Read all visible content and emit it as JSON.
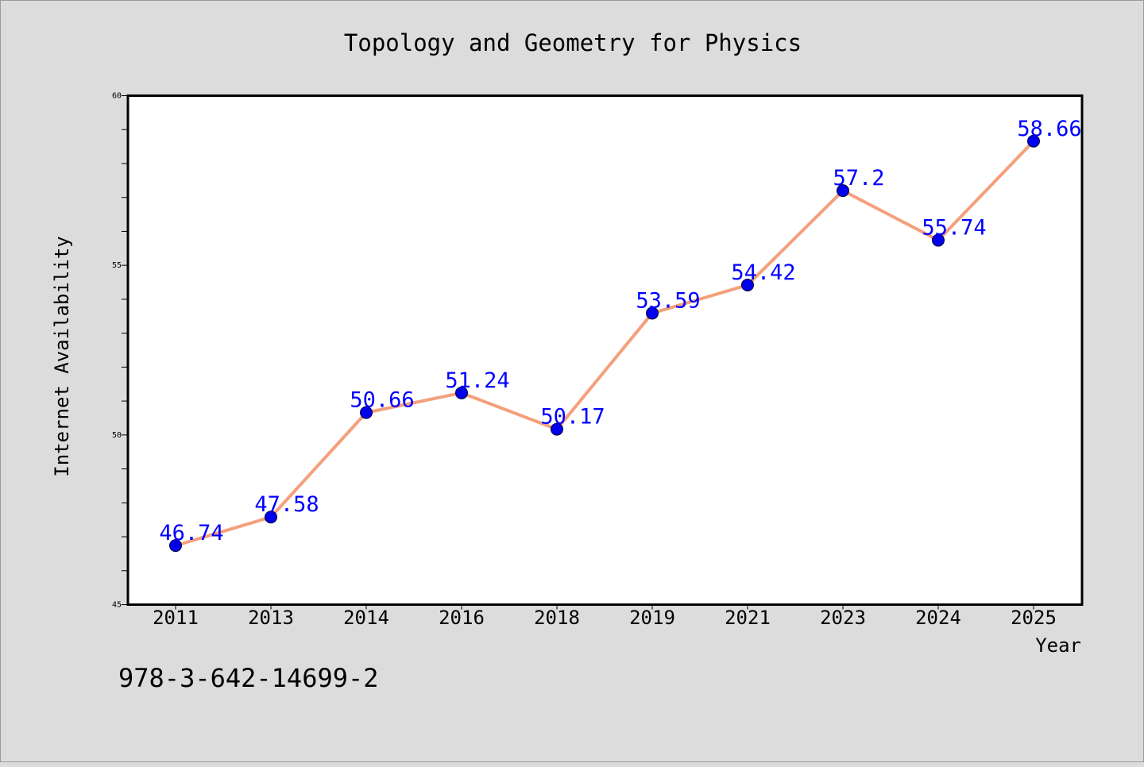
{
  "chart_data": {
    "type": "line",
    "title": "Topology and Geometry for Physics",
    "xlabel": "Year",
    "ylabel": "Internet Availability",
    "categories": [
      "2011",
      "2013",
      "2014",
      "2016",
      "2018",
      "2019",
      "2021",
      "2023",
      "2024",
      "2025"
    ],
    "series": [
      {
        "values": [
          46.74,
          47.58,
          50.66,
          51.24,
          50.17,
          53.59,
          54.42,
          57.2,
          55.74,
          58.66
        ],
        "labels": [
          "46.74",
          "47.58",
          "50.66",
          "51.24",
          "50.17",
          "53.59",
          "54.42",
          "57.2",
          "55.74",
          "58.66"
        ]
      }
    ],
    "ylim": [
      45,
      60
    ],
    "yticks": [
      45,
      50,
      55,
      60
    ],
    "ytick_labels": [
      "45",
      "50",
      "55",
      "60"
    ],
    "y_minor_step": 1,
    "grid": false,
    "colors": {
      "line": "#f4a07c",
      "marker": "#0000ee",
      "label": "#0000ff",
      "background": "#dcdcdc",
      "plot_background": "#ffffff"
    }
  },
  "annotation": "978-3-642-14699-2"
}
